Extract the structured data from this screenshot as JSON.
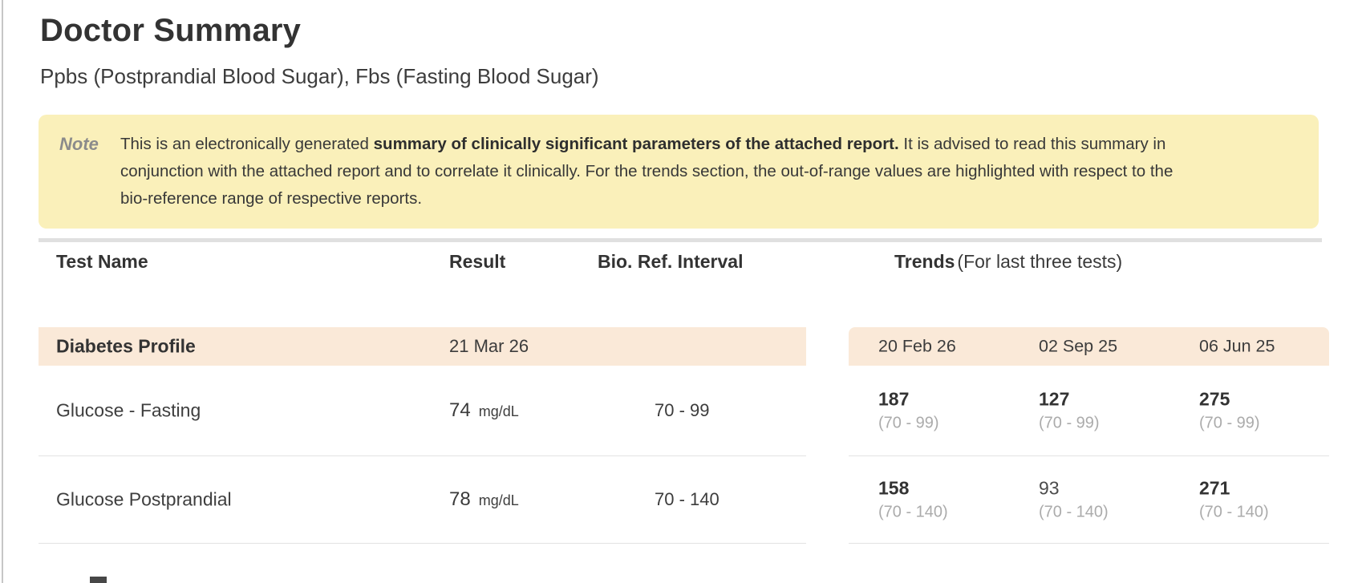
{
  "page": {
    "title": "Doctor Summary",
    "subtitle": "Ppbs (Postprandial Blood Sugar), Fbs (Fasting Blood Sugar)"
  },
  "note": {
    "label": "Note",
    "text_pre": "This is an electronically generated ",
    "text_bold": "summary of clinically significant parameters of the attached report.",
    "text_post": " It is advised to read this summary in conjunction with the attached report and to correlate it clinically. For the trends section, the out-of-range values are highlighted with respect to the bio-reference range of respective reports."
  },
  "colors": {
    "note_background": "#faf0ba",
    "profile_row_background": "#fae9d8",
    "out_of_range_text": "#333333",
    "range_text": "#ababab"
  },
  "table": {
    "headers": {
      "test_name": "Test Name",
      "result": "Result",
      "bio_ref": "Bio. Ref. Interval",
      "trends": "Trends",
      "trends_sub": "(For last three tests)"
    },
    "profile": {
      "name": "Diabetes Profile",
      "date": "21 Mar 26"
    },
    "trend_dates": [
      "20 Feb 26",
      "02 Sep 25",
      "06 Jun 25"
    ],
    "rows": [
      {
        "name": "Glucose - Fasting",
        "result": "74",
        "unit": "mg/dL",
        "bio_ref": "70 - 99",
        "trends": [
          {
            "value": "187",
            "range": "(70 - 99)",
            "out_of_range": true
          },
          {
            "value": "127",
            "range": "(70 - 99)",
            "out_of_range": true
          },
          {
            "value": "275",
            "range": "(70 - 99)",
            "out_of_range": true
          }
        ]
      },
      {
        "name": "Glucose Postprandial",
        "result": "78",
        "unit": "mg/dL",
        "bio_ref": "70 - 140",
        "trends": [
          {
            "value": "158",
            "range": "(70 - 140)",
            "out_of_range": true
          },
          {
            "value": "93",
            "range": "(70 - 140)",
            "out_of_range": false
          },
          {
            "value": "271",
            "range": "(70 - 140)",
            "out_of_range": true
          }
        ]
      }
    ]
  }
}
